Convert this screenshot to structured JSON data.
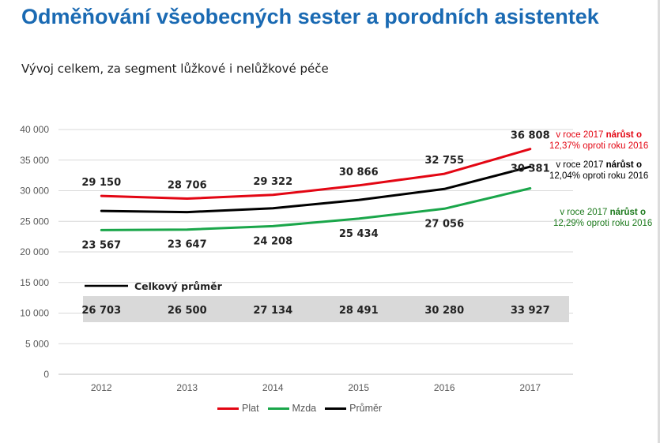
{
  "title": "Odměňování všeobecných sester a porodních asistentek",
  "subtitle": "Vývoj celkem, za segment lůžkové i nelůžkové péče",
  "chart_data": {
    "type": "line",
    "categories": [
      "2012",
      "2013",
      "2014",
      "2015",
      "2016",
      "2017"
    ],
    "ylim": [
      0,
      40000
    ],
    "yticks": [
      "0",
      "5 000",
      "10 000",
      "15 000",
      "20 000",
      "25 000",
      "30 000",
      "35 000",
      "40 000"
    ],
    "grid": true,
    "series": [
      {
        "name": "Plat",
        "color": "#e30613",
        "values": [
          29150,
          28706,
          29322,
          30866,
          32755,
          36808
        ],
        "labels": [
          "29 150",
          "28 706",
          "29 322",
          "30 866",
          "32 755",
          "36 808"
        ]
      },
      {
        "name": "Mzda",
        "color": "#1aa64a",
        "values": [
          23567,
          23647,
          24208,
          25434,
          27056,
          30381
        ],
        "labels": [
          "23 567",
          "23 647",
          "24 208",
          "25 434",
          "27 056",
          "30 381"
        ]
      },
      {
        "name": "Průměr",
        "color": "#000000",
        "values": [
          26703,
          26500,
          27134,
          28491,
          30280,
          33927
        ],
        "labels": [
          "26 703",
          "26 500",
          "27 134",
          "28 491",
          "30 280",
          "33 927"
        ]
      }
    ],
    "average_box": {
      "label": "Celkový průměr",
      "color": "#d9d9d9"
    },
    "legend_position": "bottom",
    "annotations": [
      {
        "color": "#e30613",
        "line1_a": "v roce 2017 ",
        "line1_b": "nárůst o",
        "line2": "12,37% oproti roku 2016"
      },
      {
        "color": "#000000",
        "line1_a": "v roce 2017 ",
        "line1_b": "nárůst o",
        "line2": "12,04% oproti roku 2016"
      },
      {
        "color": "#1d7a1d",
        "line1_a": "v roce 2017 ",
        "line1_b": "nárůst o",
        "line2": "12,29% oproti roku 2016"
      }
    ]
  }
}
